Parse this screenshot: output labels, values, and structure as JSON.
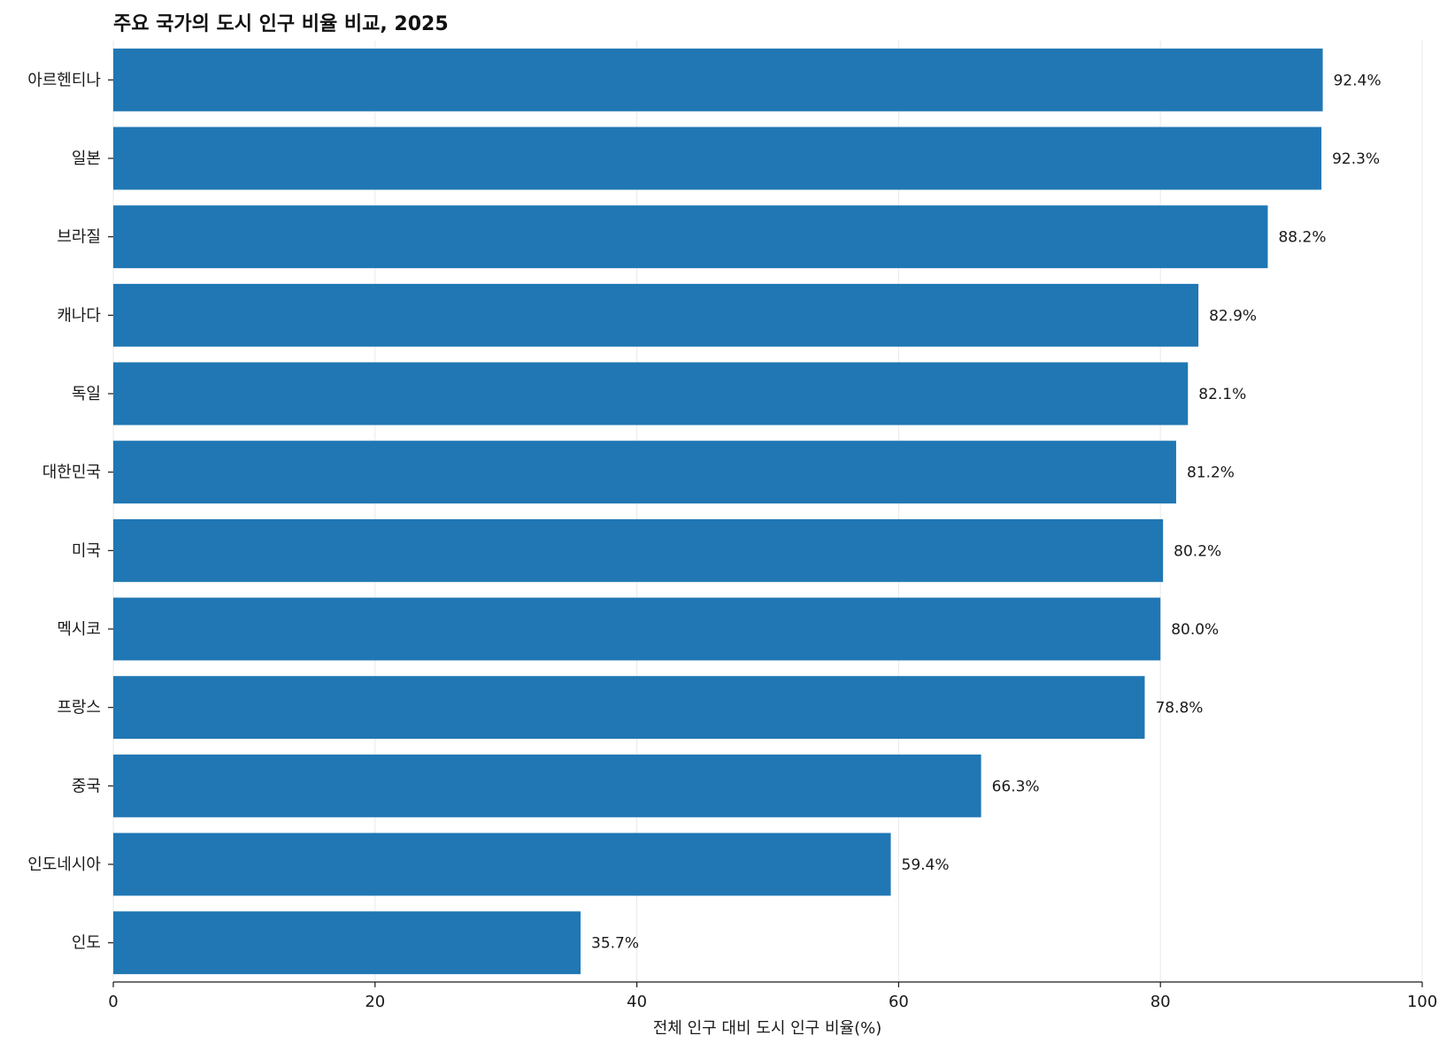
{
  "chart_data": {
    "type": "bar",
    "orientation": "horizontal",
    "title": "주요 국가의 도시 인구 비율 비교, 2025",
    "xlabel": "전체 인구 대비 도시 인구 비율(%)",
    "ylabel": "",
    "xlim": [
      0,
      100
    ],
    "xticks": [
      0,
      20,
      40,
      60,
      80,
      100
    ],
    "grid": "vertical",
    "categories": [
      "아르헨티나",
      "일본",
      "브라질",
      "캐나다",
      "독일",
      "대한민국",
      "미국",
      "멕시코",
      "프랑스",
      "중국",
      "인도네시아",
      "인도"
    ],
    "values": [
      92.4,
      92.3,
      88.2,
      82.9,
      82.1,
      81.2,
      80.2,
      80.0,
      78.8,
      66.3,
      59.4,
      35.7
    ],
    "value_labels": [
      "92.4%",
      "92.3%",
      "88.2%",
      "82.9%",
      "82.1%",
      "81.2%",
      "80.2%",
      "80.0%",
      "78.8%",
      "66.3%",
      "59.4%",
      "35.7%"
    ],
    "bar_color": "#2077b4",
    "grid_color": "#e9e9e9",
    "axis_color": "#1a1a1a"
  }
}
